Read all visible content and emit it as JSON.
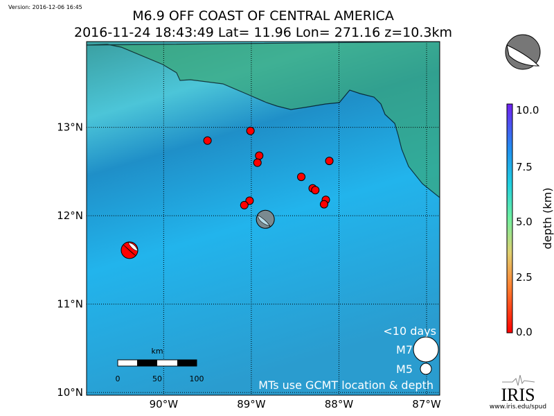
{
  "version": "Version: 2016-12-06 16:45",
  "title": "M6.9 OFF COAST OF CENTRAL AMERICA",
  "subtitle": "2016-11-24 18:43:49 Lat= 11.96 Lon= 271.16 z=10.3km",
  "map": {
    "lon_range": [
      -90.88,
      -86.85
    ],
    "lat_range": [
      9.97,
      13.97
    ],
    "lon_ticks": [
      {
        "v": -90,
        "label": "90°W"
      },
      {
        "v": -89,
        "label": "89°W"
      },
      {
        "v": -88,
        "label": "88°W"
      },
      {
        "v": -87,
        "label": "87°W"
      }
    ],
    "lat_ticks": [
      {
        "v": 13,
        "label": "13°N"
      },
      {
        "v": 12,
        "label": "12°N"
      },
      {
        "v": 11,
        "label": "11°N"
      },
      {
        "v": 10,
        "label": "10°N"
      }
    ],
    "events": [
      [
        -89.5,
        12.85
      ],
      [
        -89.01,
        12.96
      ],
      [
        -88.91,
        12.68
      ],
      [
        -88.93,
        12.6
      ],
      [
        -88.43,
        12.44
      ],
      [
        -88.11,
        12.62
      ],
      [
        -88.3,
        12.31
      ],
      [
        -88.27,
        12.29
      ],
      [
        -88.15,
        12.18
      ],
      [
        -88.17,
        12.13
      ],
      [
        -89.02,
        12.17
      ],
      [
        -89.08,
        12.12
      ]
    ],
    "event_color": "#ff0000",
    "main_event": {
      "lon": -88.84,
      "lat": 11.96
    },
    "beachball": {
      "lon": -90.39,
      "lat": 11.61,
      "color": "#ff0000"
    },
    "legend": {
      "title": "<10 days",
      "m7": "M7",
      "m5": "M5",
      "note": "MTs use GCMT location & depth"
    },
    "scalebar": {
      "unit": "km",
      "labels": [
        "0",
        "50",
        "100"
      ]
    }
  },
  "colorbar": {
    "label": "depth (km)",
    "ticks": [
      "10.0",
      "7.5",
      "5.0",
      "2.5",
      "0.0"
    ],
    "range": [
      0,
      10
    ]
  },
  "logo": {
    "text": "IRIS",
    "url": "www.iris.edu/spud"
  }
}
